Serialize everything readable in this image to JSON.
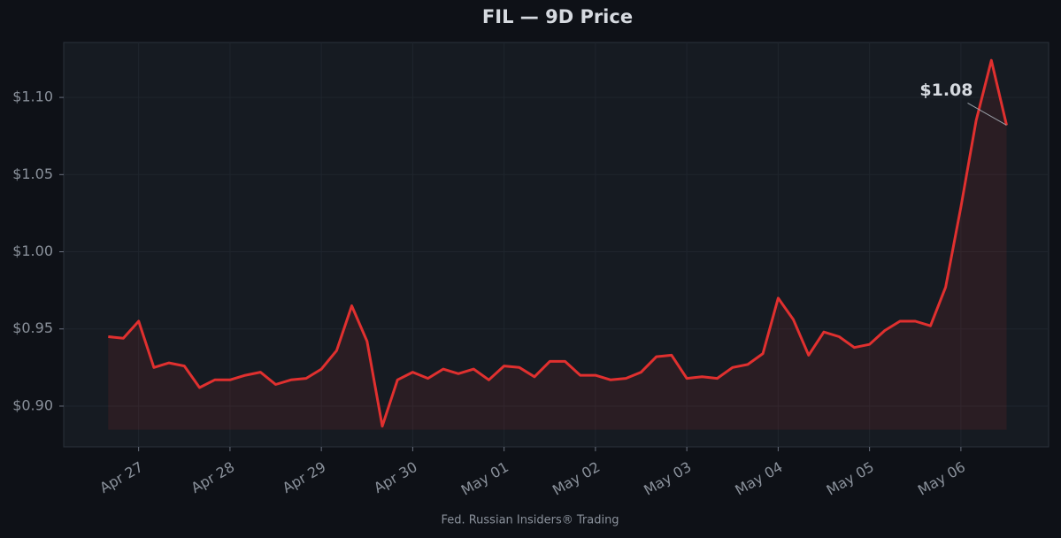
{
  "chart_data": {
    "type": "line",
    "title": "FIL — 9D Price",
    "footer": "Fed. Russian Insiders® Trading",
    "x": [
      0.667,
      0.833,
      1,
      1.167,
      1.333,
      1.5,
      1.667,
      1.833,
      2,
      2.167,
      2.333,
      2.5,
      2.667,
      2.833,
      3,
      3.167,
      3.333,
      3.5,
      3.667,
      3.833,
      4,
      4.167,
      4.333,
      4.5,
      4.667,
      4.833,
      5,
      5.167,
      5.333,
      5.5,
      5.667,
      5.833,
      6,
      6.167,
      6.333,
      6.5,
      6.667,
      6.833,
      7,
      7.167,
      7.333,
      7.5,
      7.667,
      7.833,
      8,
      8.167,
      8.333,
      8.5,
      8.667,
      8.833,
      9,
      9.167,
      9.333,
      9.5,
      9.667,
      9.833,
      10,
      10.167,
      10.333,
      10.5
    ],
    "series": [
      {
        "name": "FIL",
        "color": "#e0302f",
        "values": [
          0.945,
          0.944,
          0.955,
          0.925,
          0.928,
          0.926,
          0.912,
          0.917,
          0.917,
          0.92,
          0.922,
          0.914,
          0.917,
          0.918,
          0.924,
          0.936,
          0.965,
          0.942,
          0.887,
          0.917,
          0.922,
          0.918,
          0.924,
          0.921,
          0.924,
          0.917,
          0.926,
          0.925,
          0.919,
          0.929,
          0.929,
          0.92,
          0.92,
          0.917,
          0.918,
          0.922,
          0.932,
          0.933,
          0.918,
          0.919,
          0.918,
          0.925,
          0.927,
          0.934,
          0.97,
          0.956,
          0.933,
          0.948,
          0.945,
          0.938,
          0.94,
          0.949,
          0.955,
          0.955,
          0.952,
          0.977,
          1.029,
          1.085,
          1.124,
          1.082
        ]
      }
    ],
    "annotation": "$1.08",
    "xlim": [
      0.18,
      10.96
    ],
    "xticks": [
      {
        "value": 1,
        "label": "Apr 27"
      },
      {
        "value": 2,
        "label": "Apr 28"
      },
      {
        "value": 3,
        "label": "Apr 29"
      },
      {
        "value": 4,
        "label": "Apr 30"
      },
      {
        "value": 5,
        "label": "May 01"
      },
      {
        "value": 6,
        "label": "May 02"
      },
      {
        "value": 7,
        "label": "May 03"
      },
      {
        "value": 8,
        "label": "May 04"
      },
      {
        "value": 9,
        "label": "May 05"
      },
      {
        "value": 10,
        "label": "May 06"
      }
    ],
    "ylim": [
      0.8736,
      1.1356
    ],
    "yticks": [
      {
        "value": 0.9,
        "label": "$0.90"
      },
      {
        "value": 0.95,
        "label": "$0.95"
      },
      {
        "value": 1.0,
        "label": "$1.00"
      },
      {
        "value": 1.05,
        "label": "$1.05"
      },
      {
        "value": 1.1,
        "label": "$1.10"
      }
    ],
    "grid": true
  }
}
